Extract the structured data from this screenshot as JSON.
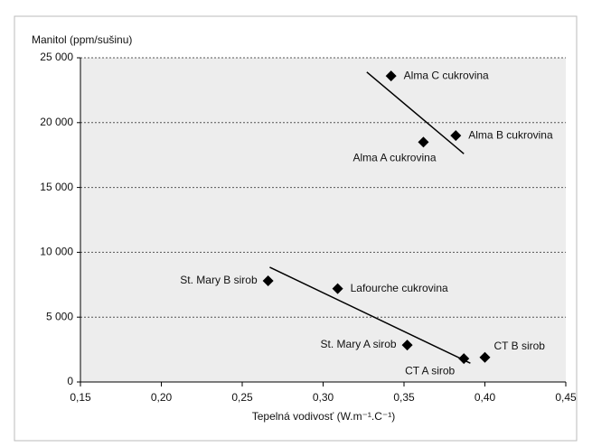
{
  "chart_data": {
    "type": "scatter",
    "y_label": "Manitol (ppm/sušinu)",
    "x_label": "Tepelná vodivosť (W.m⁻¹.C⁻¹)",
    "labels": [
      "Alma C cukrovina",
      "Alma B cukrovina",
      "Alma A cukrovina",
      "St. Mary B sirob",
      "Lafourche cukrovina",
      "St. Mary A sirob",
      "CT A sirob",
      "CT B sirob"
    ],
    "x": [
      0.342,
      0.382,
      0.362,
      0.266,
      0.309,
      0.352,
      0.387,
      0.4
    ],
    "values": [
      23600,
      19000,
      18500,
      7800,
      7200,
      2850,
      1800,
      1900
    ],
    "color": "#000000",
    "trendlines": [
      {
        "x": [
          0.327,
          0.387
        ],
        "values": [
          23900,
          17600
        ]
      },
      {
        "x": [
          0.267,
          0.391
        ],
        "values": [
          8850,
          1450
        ]
      }
    ],
    "xlim": [
      0.15,
      0.45
    ],
    "xticks": [
      {
        "value": 0.15,
        "label": "0,15"
      },
      {
        "value": 0.2,
        "label": "0,20"
      },
      {
        "value": 0.25,
        "label": "0,25"
      },
      {
        "value": 0.3,
        "label": "0,30"
      },
      {
        "value": 0.35,
        "label": "0,35"
      },
      {
        "value": 0.4,
        "label": "0,40"
      },
      {
        "value": 0.45,
        "label": "0,45"
      }
    ],
    "ylim": [
      0,
      25000
    ],
    "yticks": [
      0,
      {
        "value": 5000,
        "label": "5 000"
      },
      {
        "value": 10000,
        "label": "10 000"
      },
      {
        "value": 15000,
        "label": "15 000"
      },
      {
        "value": 20000,
        "label": "20 000"
      },
      {
        "value": 25000,
        "label": "25 000"
      }
    ],
    "grid": true
  }
}
